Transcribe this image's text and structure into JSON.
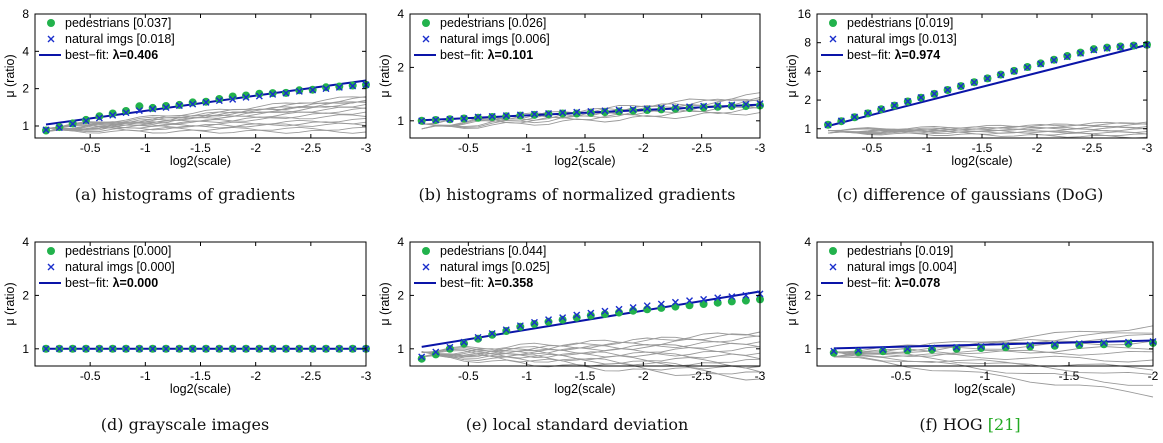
{
  "chart_data": [
    {
      "type": "line",
      "panel": "a",
      "caption": "(a)  histograms of gradients",
      "xlabel": "log2(scale)",
      "ylabel": "μ (ratio)",
      "xlim": [
        0,
        -3
      ],
      "ylim": [
        0.8,
        8
      ],
      "yscale": "log2",
      "xticks": [
        "-0.5",
        "-1",
        "-1.5",
        "-2",
        "-2.5",
        "-3"
      ],
      "xtick_values": [
        -0.5,
        -1,
        -1.5,
        -2,
        -2.5,
        -3
      ],
      "yticks": [
        "1",
        "2",
        "4",
        "8"
      ],
      "ytick_values": [
        1,
        2,
        4,
        8
      ],
      "lambda": 0.406,
      "ped_vals": [
        0.92,
        0.98,
        1.05,
        1.12,
        1.2,
        1.26,
        1.32,
        1.44,
        1.4,
        1.45,
        1.48,
        1.55,
        1.57,
        1.65,
        1.73,
        1.76,
        1.82,
        1.84,
        1.85,
        1.94,
        1.96,
        2.05,
        2.08,
        2.12,
        2.15
      ],
      "nat_vals": [
        0.93,
        0.97,
        1.04,
        1.1,
        1.16,
        1.22,
        1.28,
        1.33,
        1.37,
        1.41,
        1.46,
        1.5,
        1.55,
        1.6,
        1.64,
        1.7,
        1.74,
        1.8,
        1.84,
        1.9,
        1.95,
        2.0,
        2.05,
        2.1,
        2.15
      ],
      "gray_spread": [
        0.9,
        0.95,
        1.03,
        1.08,
        1.12,
        1.22,
        1.3,
        1.36,
        1.42,
        1.5,
        1.55,
        1.58,
        1.62,
        1.68,
        1.74
      ],
      "legend": {
        "pedestrians": "pedestrians [0.037]",
        "natural": "natural imgs [0.018]",
        "fit_prefix": "best−fit:  ",
        "fit_value": "λ=0.406"
      }
    },
    {
      "type": "line",
      "panel": "b",
      "caption": "(b)  histograms of normalized gradients",
      "xlabel": "log2(scale)",
      "ylabel": "μ (ratio)",
      "xlim": [
        0,
        -3
      ],
      "ylim": [
        0.8,
        4
      ],
      "yscale": "log2",
      "xticks": [
        "-0.5",
        "-1",
        "-1.5",
        "-2",
        "-2.5",
        "-3"
      ],
      "xtick_values": [
        -0.5,
        -1,
        -1.5,
        -2,
        -2.5,
        -3
      ],
      "yticks": [
        "1",
        "2",
        "4"
      ],
      "ytick_values": [
        1,
        2,
        4
      ],
      "lambda": 0.101,
      "ped_vals": [
        1.0,
        1.01,
        1.02,
        1.03,
        1.04,
        1.05,
        1.06,
        1.07,
        1.08,
        1.09,
        1.1,
        1.1,
        1.11,
        1.12,
        1.13,
        1.14,
        1.15,
        1.16,
        1.17,
        1.18,
        1.19,
        1.2,
        1.21,
        1.21,
        1.22
      ],
      "nat_vals": [
        1.0,
        1.01,
        1.02,
        1.03,
        1.05,
        1.06,
        1.07,
        1.08,
        1.09,
        1.1,
        1.11,
        1.12,
        1.13,
        1.14,
        1.15,
        1.16,
        1.17,
        1.18,
        1.19,
        1.2,
        1.21,
        1.22,
        1.23,
        1.24,
        1.25
      ],
      "gray_spread": [
        1.12,
        1.16,
        1.2,
        1.24,
        1.28,
        1.32,
        1.36,
        1.4
      ],
      "legend": {
        "pedestrians": "pedestrians [0.026]",
        "natural": "natural imgs [0.006]",
        "fit_prefix": "best−fit:  ",
        "fit_value": "λ=0.101"
      }
    },
    {
      "type": "line",
      "panel": "c",
      "caption": "(c)  difference of gaussians (DoG)",
      "xlabel": "log2(scale)",
      "ylabel": "μ (ratio)",
      "xlim": [
        0,
        -3
      ],
      "ylim": [
        0.8,
        16
      ],
      "yscale": "log2",
      "xticks": [
        "-0.5",
        "-1",
        "-1.5",
        "-2",
        "-2.5",
        "-3"
      ],
      "xtick_values": [
        -0.5,
        -1,
        -1.5,
        -2,
        -2.5,
        -3
      ],
      "yticks": [
        "1",
        "2",
        "4",
        "8",
        "16"
      ],
      "ytick_values": [
        1,
        2,
        4,
        8,
        16
      ],
      "lambda": 0.974,
      "ped_vals": [
        1.1,
        1.2,
        1.32,
        1.45,
        1.6,
        1.75,
        1.93,
        2.12,
        2.32,
        2.55,
        2.8,
        3.08,
        3.38,
        3.7,
        4.05,
        4.45,
        4.85,
        5.3,
        5.8,
        6.3,
        6.85,
        7.1,
        7.3,
        7.45,
        7.6
      ],
      "nat_vals": [
        1.1,
        1.21,
        1.33,
        1.46,
        1.6,
        1.76,
        1.94,
        2.13,
        2.33,
        2.56,
        2.8,
        3.07,
        3.37,
        3.68,
        4.03,
        4.4,
        4.8,
        5.25,
        5.7,
        6.2,
        6.7,
        7.0,
        7.2,
        7.4,
        7.6
      ],
      "gray_spread": [
        0.82,
        0.86,
        0.9,
        0.94,
        0.98,
        1.02,
        1.06,
        1.1,
        1.14,
        1.18
      ],
      "legend": {
        "pedestrians": "pedestrians [0.019]",
        "natural": "natural imgs [0.013]",
        "fit_prefix": "best−fit:  ",
        "fit_value": "λ=0.974"
      }
    },
    {
      "type": "line",
      "panel": "d",
      "caption": "(d)  grayscale images",
      "xlabel": "log2(scale)",
      "ylabel": "μ (ratio)",
      "xlim": [
        0,
        -3
      ],
      "ylim": [
        0.8,
        4
      ],
      "yscale": "log2",
      "xticks": [
        "-0.5",
        "-1",
        "-1.5",
        "-2",
        "-2.5",
        "-3"
      ],
      "xtick_values": [
        -0.5,
        -1,
        -1.5,
        -2,
        -2.5,
        -3
      ],
      "yticks": [
        "1",
        "2",
        "4"
      ],
      "ytick_values": [
        1,
        2,
        4
      ],
      "lambda": 0.0,
      "ped_vals": [
        1,
        1,
        1,
        1,
        1,
        1,
        1,
        1,
        1,
        1,
        1,
        1,
        1,
        1,
        1,
        1,
        1,
        1,
        1,
        1,
        1,
        1,
        1,
        1,
        1
      ],
      "nat_vals": [
        1,
        1,
        1,
        1,
        1,
        1,
        1,
        1,
        1,
        1,
        1,
        1,
        1,
        1,
        1,
        1,
        1,
        1,
        1,
        1,
        1,
        1,
        1,
        1,
        1
      ],
      "gray_spread": [],
      "legend": {
        "pedestrians": "pedestrians [0.000]",
        "natural": "natural imgs [0.000]",
        "fit_prefix": "best−fit:  ",
        "fit_value": "λ=0.000"
      }
    },
    {
      "type": "line",
      "panel": "e",
      "caption": "(e)  local standard deviation",
      "xlabel": "log2(scale)",
      "ylabel": "μ (ratio)",
      "xlim": [
        0,
        -3
      ],
      "ylim": [
        0.8,
        4
      ],
      "yscale": "log2",
      "xticks": [
        "-0.5",
        "-1",
        "-1.5",
        "-2",
        "-2.5",
        "-3"
      ],
      "xtick_values": [
        -0.5,
        -1,
        -1.5,
        -2,
        -2.5,
        -3
      ],
      "yticks": [
        "1",
        "2",
        "4"
      ],
      "ytick_values": [
        1,
        2,
        4
      ],
      "lambda": 0.358,
      "ped_vals": [
        0.88,
        0.93,
        1.0,
        1.07,
        1.14,
        1.2,
        1.26,
        1.33,
        1.38,
        1.42,
        1.46,
        1.5,
        1.54,
        1.57,
        1.6,
        1.64,
        1.67,
        1.7,
        1.73,
        1.76,
        1.79,
        1.82,
        1.85,
        1.87,
        1.9
      ],
      "nat_vals": [
        0.9,
        0.96,
        1.02,
        1.09,
        1.16,
        1.22,
        1.28,
        1.35,
        1.41,
        1.46,
        1.5,
        1.55,
        1.59,
        1.63,
        1.67,
        1.71,
        1.75,
        1.79,
        1.83,
        1.87,
        1.9,
        1.94,
        1.97,
        2.0,
        2.04
      ],
      "gray_spread": [
        0.68,
        0.72,
        0.76,
        0.8,
        0.85,
        0.9,
        0.95,
        1.0,
        1.05,
        1.1,
        1.15,
        1.2,
        1.25
      ],
      "legend": {
        "pedestrians": "pedestrians [0.044]",
        "natural": "natural imgs [0.025]",
        "fit_prefix": "best−fit:  ",
        "fit_value": "λ=0.358"
      }
    },
    {
      "type": "line",
      "panel": "f",
      "caption_prefix": "(f)  HOG ",
      "caption_cite": "[21]",
      "xlabel": "log2(scale)",
      "ylabel": "μ (ratio)",
      "xlim": [
        0,
        -2
      ],
      "ylim": [
        0.8,
        4
      ],
      "yscale": "log2",
      "xticks": [
        "-0.5",
        "-1",
        "-1.5",
        "-2"
      ],
      "xtick_values": [
        -0.5,
        -1,
        -1.5,
        -2
      ],
      "yticks": [
        "1",
        "2",
        "4"
      ],
      "ytick_values": [
        1,
        2,
        4
      ],
      "lambda": 0.078,
      "ped_vals": [
        0.95,
        0.96,
        0.97,
        0.98,
        0.99,
        1.0,
        1.01,
        1.02,
        1.03,
        1.04,
        1.05,
        1.06,
        1.07,
        1.08
      ],
      "nat_vals": [
        0.97,
        0.98,
        0.99,
        1.0,
        1.01,
        1.02,
        1.03,
        1.04,
        1.05,
        1.06,
        1.07,
        1.08,
        1.09,
        1.1
      ],
      "gray_spread": [
        0.55,
        0.62,
        0.7,
        0.78,
        0.86,
        0.94,
        1.02,
        1.1,
        1.18,
        1.26,
        1.34
      ],
      "legend": {
        "pedestrians": "pedestrians [0.019]",
        "natural": "natural imgs [0.004]",
        "fit_prefix": "best−fit:  ",
        "fit_value": "λ=0.078"
      }
    }
  ],
  "colors": {
    "pedestrians": "#22b24c",
    "natural": "#1a2ecc",
    "fit": "#0a14a8",
    "gray": "#9a9a9a",
    "axis": "#000000"
  }
}
